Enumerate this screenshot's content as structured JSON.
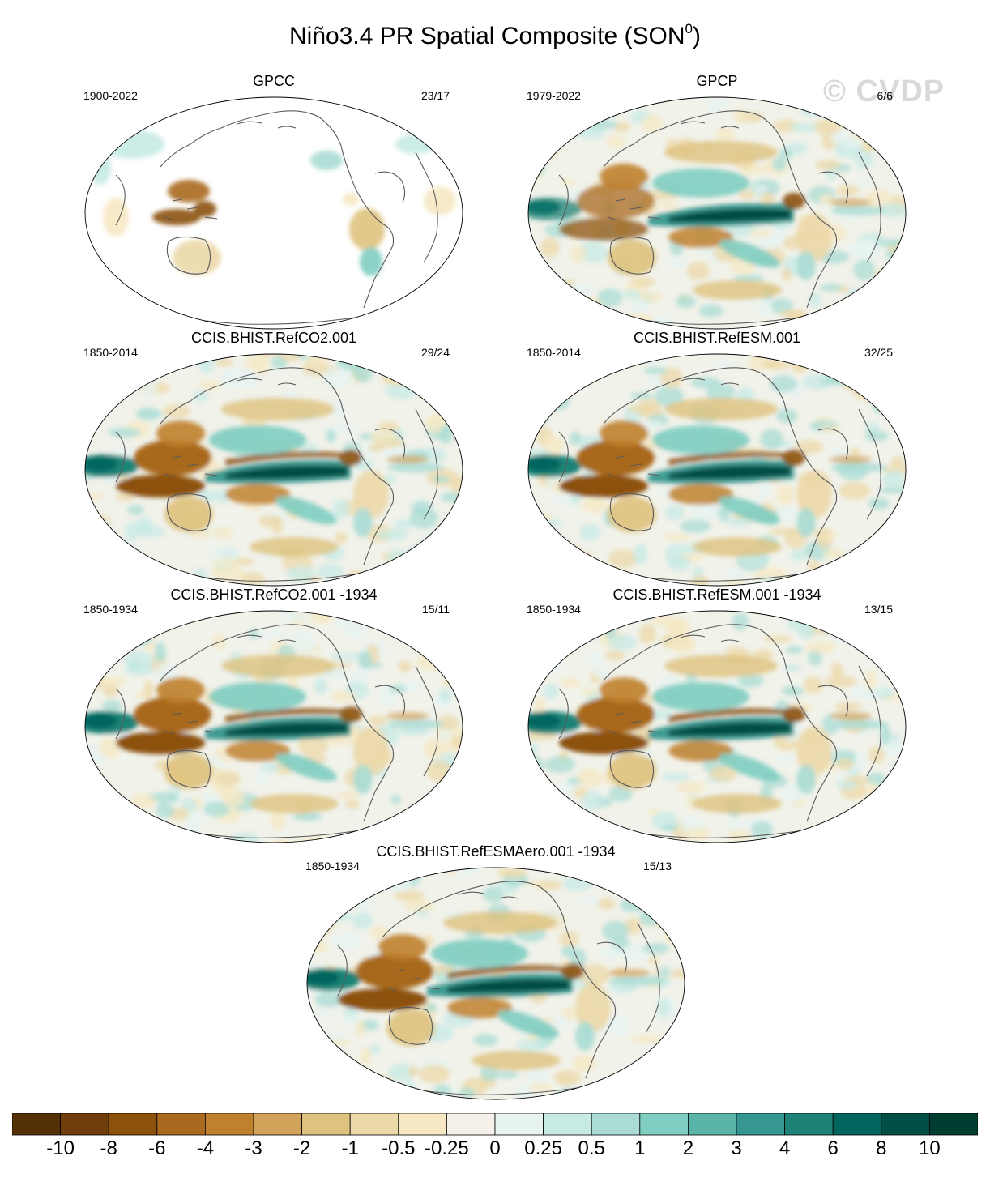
{
  "title": "Niño3.4 PR Spatial Composite (SON",
  "title_superscript": "0",
  "title_close": ")",
  "watermark": "© CVDP",
  "panels": [
    {
      "title": "GPCC",
      "period": "1900-2022",
      "count": "23/17",
      "style": "land"
    },
    {
      "title": "GPCP",
      "period": "1979-2022",
      "count": "6/6",
      "style": "obs"
    },
    {
      "title": "CCIS.BHIST.RefCO2.001",
      "period": "1850-2014",
      "count": "29/24",
      "style": "model"
    },
    {
      "title": "CCIS.BHIST.RefESM.001",
      "period": "1850-2014",
      "count": "32/25",
      "style": "model"
    },
    {
      "title": "CCIS.BHIST.RefCO2.001 -1934",
      "period": "1850-1934",
      "count": "15/11",
      "style": "model"
    },
    {
      "title": "CCIS.BHIST.RefESM.001 -1934",
      "period": "1850-1934",
      "count": "13/15",
      "style": "model"
    },
    {
      "title": "CCIS.BHIST.RefESMAero.001 -1934",
      "period": "1850-1934",
      "count": "15/13",
      "style": "model"
    }
  ],
  "colorbar": {
    "colors": [
      "#543005",
      "#6f3e0a",
      "#8c510a",
      "#a9691f",
      "#bf812d",
      "#d2a35b",
      "#dfc27d",
      "#ecd8a8",
      "#f6e8c3",
      "#f5f1e9",
      "#e6f3f1",
      "#c7eae5",
      "#a9dcd4",
      "#80cdc1",
      "#5ab4a8",
      "#35978f",
      "#1d8377",
      "#01665e",
      "#014e44",
      "#003c30"
    ],
    "labels": [
      "-10",
      "-8",
      "-6",
      "-4",
      "-3",
      "-2",
      "-1",
      "-0.5",
      "-0.25",
      "0",
      "0.25",
      "0.5",
      "1",
      "2",
      "3",
      "4",
      "6",
      "8",
      "10"
    ]
  }
}
